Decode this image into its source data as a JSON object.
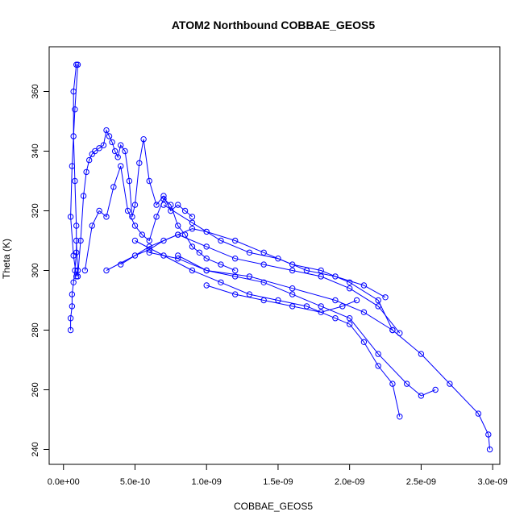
{
  "chart_data": {
    "type": "line",
    "title": "ATOM2 Northbound COBBAE_GEOS5",
    "xlabel": "COBBAE_GEOS5",
    "ylabel": "Theta (K)",
    "xlim": [
      -1e-10,
      3.05e-09
    ],
    "ylim": [
      235,
      375
    ],
    "grid": false,
    "x_ticks": [
      {
        "value": 0,
        "label": "0.0e+00"
      },
      {
        "value": 5e-10,
        "label": "5.0e-10"
      },
      {
        "value": 1e-09,
        "label": "1.0e-09"
      },
      {
        "value": 1.5e-09,
        "label": "1.5e-09"
      },
      {
        "value": 2e-09,
        "label": "2.0e-09"
      },
      {
        "value": 2.5e-09,
        "label": "2.5e-09"
      },
      {
        "value": 3e-09,
        "label": "3.0e-09"
      }
    ],
    "y_ticks": [
      {
        "value": 240,
        "label": "240"
      },
      {
        "value": 260,
        "label": "260"
      },
      {
        "value": 280,
        "label": "280"
      },
      {
        "value": 300,
        "label": "300"
      },
      {
        "value": 320,
        "label": "320"
      },
      {
        "value": 340,
        "label": "340"
      },
      {
        "value": 360,
        "label": "360"
      }
    ],
    "series": [
      {
        "color": "#0000ff",
        "x": [
          5e-11,
          5e-11,
          6e-11,
          6e-11,
          7e-11,
          8e-11,
          9e-11,
          9e-11,
          8e-11,
          7e-11,
          7e-11,
          9e-11,
          1e-10,
          8e-11,
          6e-11,
          5e-11,
          7e-11,
          9e-11,
          1e-10,
          9e-11
        ],
        "y": [
          280,
          284,
          288,
          292,
          296,
          300,
          306,
          315,
          330,
          345,
          360,
          369,
          369,
          354,
          335,
          318,
          305,
          298,
          300,
          310
        ]
      },
      {
        "color": "#0000ff",
        "x": [
          1e-10,
          1.2e-10,
          1.4e-10,
          1.6e-10,
          1.8e-10,
          2e-10,
          2.2e-10,
          2.5e-10,
          2.8e-10,
          3e-10,
          3.2e-10,
          3.4e-10,
          3.6e-10,
          3.8e-10,
          4e-10,
          4.3e-10,
          4.6e-10,
          4.8e-10,
          5e-10,
          5.3e-10,
          5.6e-10,
          6e-10,
          6.5e-10,
          7e-10,
          7.5e-10,
          8e-10,
          8.5e-10,
          9e-10
        ],
        "y": [
          298,
          310,
          325,
          333,
          337,
          339,
          340,
          341,
          342,
          347,
          345,
          343,
          340,
          338,
          342,
          340,
          330,
          318,
          322,
          336,
          344,
          330,
          322,
          325,
          320,
          322,
          320,
          318
        ]
      },
      {
        "color": "#0000ff",
        "x": [
          1.5e-10,
          2e-10,
          2.5e-10,
          3e-10,
          3.5e-10,
          4e-10,
          4.5e-10,
          5e-10,
          5.5e-10,
          6e-10,
          6.5e-10,
          7e-10,
          7.5e-10,
          8e-10,
          8.5e-10,
          9e-10,
          9.5e-10,
          1e-09,
          1.1e-09,
          1.2e-09
        ],
        "y": [
          300,
          315,
          320,
          318,
          328,
          335,
          320,
          315,
          312,
          310,
          318,
          324,
          322,
          315,
          312,
          308,
          306,
          304,
          302,
          300
        ]
      },
      {
        "color": "#0000ff",
        "x": [
          3e-10,
          5e-10,
          6e-10,
          7e-10,
          8e-10,
          9e-10,
          1e-09,
          1.2e-09,
          1.4e-09,
          1.6e-09,
          1.8e-09,
          2e-09,
          2.2e-09,
          2.3e-09
        ],
        "y": [
          300,
          305,
          307,
          310,
          312,
          314,
          313,
          310,
          306,
          302,
          300,
          296,
          290,
          280
        ]
      },
      {
        "color": "#0000ff",
        "x": [
          5e-10,
          7e-10,
          9e-10,
          1.1e-09,
          1.3e-09,
          1.5e-09,
          1.7e-09,
          1.9e-09,
          2e-09,
          2.1e-09,
          2.2e-09,
          2.3e-09,
          2.35e-09
        ],
        "y": [
          310,
          305,
          300,
          296,
          292,
          290,
          288,
          284,
          282,
          276,
          268,
          262,
          251
        ]
      },
      {
        "color": "#0000ff",
        "x": [
          6e-10,
          8e-10,
          1e-09,
          1.2e-09,
          1.4e-09,
          1.6e-09,
          1.8e-09,
          2e-09,
          2.2e-09,
          2.4e-09,
          2.5e-09,
          2.6e-09
        ],
        "y": [
          306,
          304,
          300,
          298,
          296,
          292,
          288,
          284,
          272,
          262,
          258,
          260
        ]
      },
      {
        "color": "#0000ff",
        "x": [
          8e-10,
          1e-09,
          1.3e-09,
          1.6e-09,
          1.9e-09,
          2.1e-09,
          2.3e-09,
          2.5e-09,
          2.7e-09,
          2.9e-09,
          2.97e-09,
          2.98e-09
        ],
        "y": [
          305,
          300,
          298,
          294,
          290,
          286,
          280,
          272,
          262,
          252,
          245,
          240
        ]
      },
      {
        "color": "#0000ff",
        "x": [
          7e-10,
          9e-10,
          1.1e-09,
          1.3e-09,
          1.5e-09,
          1.7e-09,
          1.9e-09,
          2.1e-09,
          2.25e-09
        ],
        "y": [
          322,
          316,
          310,
          306,
          304,
          300,
          298,
          295,
          291
        ]
      },
      {
        "color": "#0000ff",
        "x": [
          1e-09,
          1.2e-09,
          1.4e-09,
          1.6e-09,
          1.8e-09,
          1.95e-09,
          2.05e-09
        ],
        "y": [
          295,
          292,
          290,
          288,
          286,
          288,
          290
        ]
      },
      {
        "color": "#0000ff",
        "x": [
          4e-10,
          6e-10,
          8e-10,
          1e-09,
          1.2e-09,
          1.4e-09,
          1.6e-09,
          1.8e-09,
          2e-09,
          2.2e-09,
          2.35e-09
        ],
        "y": [
          302,
          308,
          312,
          308,
          304,
          302,
          300,
          298,
          294,
          288,
          279
        ]
      }
    ]
  }
}
